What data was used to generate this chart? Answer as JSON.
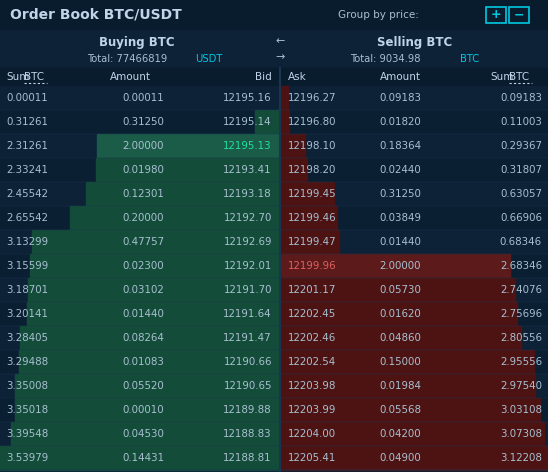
{
  "title": "Order Book BTC/USDT",
  "group_by_price": "Group by price:",
  "buying_title": "Buying BTC",
  "selling_title": "Selling BTC",
  "buying_total": "Total: 77466819",
  "buying_total_currency": "USDT",
  "selling_total": "Total: 9034.98",
  "selling_total_currency": "BTC",
  "buy_rows": [
    [
      0.00011,
      0.00011,
      12195.16
    ],
    [
      0.31261,
      0.3125,
      12195.14
    ],
    [
      2.31261,
      2.0,
      12195.13
    ],
    [
      2.33241,
      0.0198,
      12193.41
    ],
    [
      2.45542,
      0.12301,
      12193.18
    ],
    [
      2.65542,
      0.2,
      12192.7
    ],
    [
      3.13299,
      0.47757,
      12192.69
    ],
    [
      3.15599,
      0.023,
      12192.01
    ],
    [
      3.18701,
      0.03102,
      12191.7
    ],
    [
      3.20141,
      0.0144,
      12191.64
    ],
    [
      3.28405,
      0.08264,
      12191.47
    ],
    [
      3.29488,
      0.01083,
      12190.66
    ],
    [
      3.35008,
      0.0552,
      12190.65
    ],
    [
      3.35018,
      0.0001,
      12189.88
    ],
    [
      3.39548,
      0.0453,
      12188.83
    ],
    [
      3.53979,
      0.14431,
      12188.81
    ]
  ],
  "sell_rows": [
    [
      12196.27,
      0.09183,
      0.09183
    ],
    [
      12196.8,
      0.0182,
      0.11003
    ],
    [
      12198.1,
      0.18364,
      0.29367
    ],
    [
      12198.2,
      0.0244,
      0.31807
    ],
    [
      12199.45,
      0.3125,
      0.63057
    ],
    [
      12199.46,
      0.03849,
      0.66906
    ],
    [
      12199.47,
      0.0144,
      0.68346
    ],
    [
      12199.96,
      2.0,
      2.68346
    ],
    [
      12201.17,
      0.0573,
      2.74076
    ],
    [
      12202.45,
      0.0162,
      2.75696
    ],
    [
      12202.46,
      0.0486,
      2.80556
    ],
    [
      12202.54,
      0.15,
      2.95556
    ],
    [
      12203.98,
      0.01984,
      2.9754
    ],
    [
      12203.99,
      0.05568,
      3.03108
    ],
    [
      12204.0,
      0.042,
      3.07308
    ],
    [
      12205.41,
      0.049,
      3.12208
    ]
  ],
  "bg_color": "#0d2137",
  "header_bg": "#091c2e",
  "alt_row_color": "#0b1f33",
  "text_color": "#a8bfd0",
  "bid_highlight_bg": "#1a5c48",
  "ask_highlight_bg": "#5c1a1a",
  "highlight_cyan": "#00c8e0",
  "header_text": "#c0d4e8",
  "divider_color": "#1a3550",
  "bar_buy_color": "#134d3a",
  "bar_sell_color": "#4d1313",
  "bid_text_highlight": "#20e0a0",
  "ask_text_highlight": "#e06060",
  "highlighted_bid_row": 2,
  "highlighted_ask_row": 7
}
